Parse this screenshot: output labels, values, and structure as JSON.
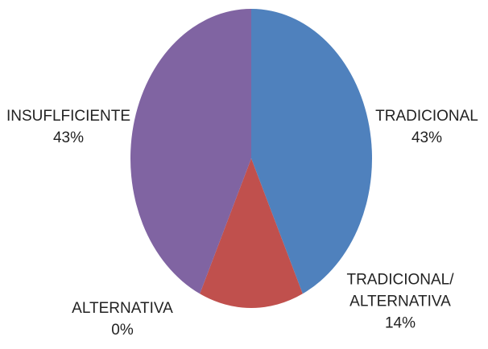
{
  "chart_data": {
    "type": "pie",
    "categories": [
      "TRADICIONAL",
      "TRADICIONAL/ ALTERNATIVA",
      "ALTERNATIVA",
      "INSUFLFICIENTE"
    ],
    "values": [
      43,
      14,
      0,
      43
    ],
    "value_labels": [
      "43%",
      "14%",
      "0%",
      "43%"
    ],
    "colors": [
      "#4f81bd",
      "#c0504d",
      "#9bbb59",
      "#8064a2"
    ]
  }
}
